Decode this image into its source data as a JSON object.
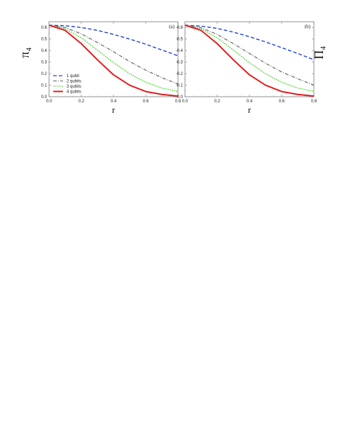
{
  "chart_data": [
    {
      "type": "line",
      "panel_label": "(a)",
      "xlabel": "r",
      "ylabel": "π₄",
      "xlim": [
        0,
        0.8
      ],
      "ylim": [
        0,
        0.65
      ],
      "xticks": [
        "0.0",
        "0.2",
        "0.4",
        "0.6",
        "0.8"
      ],
      "yticks": [
        "0.0",
        "0.1",
        "0.2",
        "0.3",
        "0.4",
        "0.5",
        "0.6"
      ],
      "legend_position": "bottom-left",
      "x": [
        0,
        0.1,
        0.2,
        0.3,
        0.4,
        0.5,
        0.6,
        0.7,
        0.8
      ],
      "series": [
        {
          "name": "1 qubit",
          "color": "#1f3fd6",
          "dash": "dashed",
          "values": [
            0.62,
            0.615,
            0.6,
            0.575,
            0.54,
            0.5,
            0.455,
            0.405,
            0.355
          ]
        },
        {
          "name": "2 qubits",
          "color": "#7a7a7a",
          "dash": "dash-dot",
          "values": [
            0.62,
            0.6,
            0.545,
            0.47,
            0.39,
            0.305,
            0.23,
            0.165,
            0.11
          ]
        },
        {
          "name": "3 qubits",
          "color": "#33cc11",
          "dash": "dotted",
          "values": [
            0.62,
            0.59,
            0.51,
            0.405,
            0.295,
            0.2,
            0.125,
            0.075,
            0.045
          ]
        },
        {
          "name": "4 qubits",
          "color": "#e41a1c",
          "dash": "solid",
          "values": [
            0.62,
            0.575,
            0.46,
            0.32,
            0.19,
            0.1,
            0.045,
            0.02,
            0.005
          ]
        }
      ]
    },
    {
      "type": "line",
      "panel_label": "(b)",
      "xlabel": "r",
      "ylabel": "Π₄",
      "xlim": [
        0,
        0.8
      ],
      "ylim": [
        0,
        0.65
      ],
      "xticks": [
        "0.0",
        "0.2",
        "0.4",
        "0.6",
        "0.8"
      ],
      "yticks": [
        "0.0",
        "0.1",
        "0.2",
        "0.3",
        "0.4",
        "0.5",
        "0.6"
      ],
      "x": [
        0,
        0.1,
        0.2,
        0.3,
        0.4,
        0.5,
        0.6,
        0.7,
        0.8
      ],
      "series": [
        {
          "color": "#1f3fd6",
          "dash": "dashed",
          "values": [
            0.62,
            0.612,
            0.592,
            0.56,
            0.52,
            0.475,
            0.425,
            0.375,
            0.32
          ]
        },
        {
          "color": "#7a7a7a",
          "dash": "dash-dot",
          "values": [
            0.62,
            0.598,
            0.54,
            0.46,
            0.375,
            0.29,
            0.215,
            0.155,
            0.1
          ]
        },
        {
          "color": "#33cc11",
          "dash": "dotted",
          "values": [
            0.62,
            0.59,
            0.51,
            0.405,
            0.295,
            0.2,
            0.125,
            0.075,
            0.045
          ]
        },
        {
          "color": "#e41a1c",
          "dash": "solid",
          "values": [
            0.62,
            0.575,
            0.46,
            0.32,
            0.19,
            0.1,
            0.045,
            0.02,
            0.005
          ]
        }
      ]
    }
  ]
}
